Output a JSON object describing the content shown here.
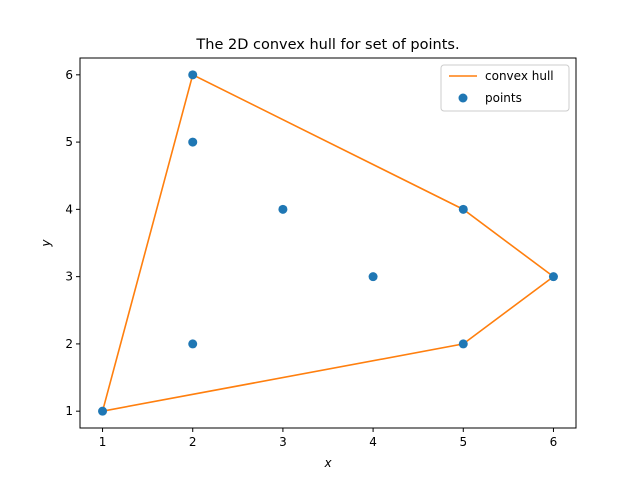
{
  "chart_data": {
    "type": "scatter",
    "title": "The 2D convex hull for set of points.",
    "xlabel": "x",
    "ylabel": "y",
    "xlim": [
      0.75,
      6.25
    ],
    "ylim": [
      0.75,
      6.25
    ],
    "xticks": [
      1,
      2,
      3,
      4,
      5,
      6
    ],
    "yticks": [
      1,
      2,
      3,
      4,
      5,
      6
    ],
    "grid": false,
    "legend_position": "top-right",
    "series": [
      {
        "name": "convex hull",
        "kind": "line",
        "color": "#ff7f0e",
        "x": [
          1,
          5,
          6,
          5,
          2,
          1
        ],
        "y": [
          1,
          2,
          3,
          4,
          6,
          1
        ]
      },
      {
        "name": "points",
        "kind": "scatter",
        "color": "#1f77b4",
        "x": [
          1,
          2,
          2,
          2,
          3,
          4,
          5,
          5,
          6
        ],
        "y": [
          1,
          2,
          5,
          6,
          4,
          3,
          2,
          4,
          3
        ]
      }
    ]
  }
}
